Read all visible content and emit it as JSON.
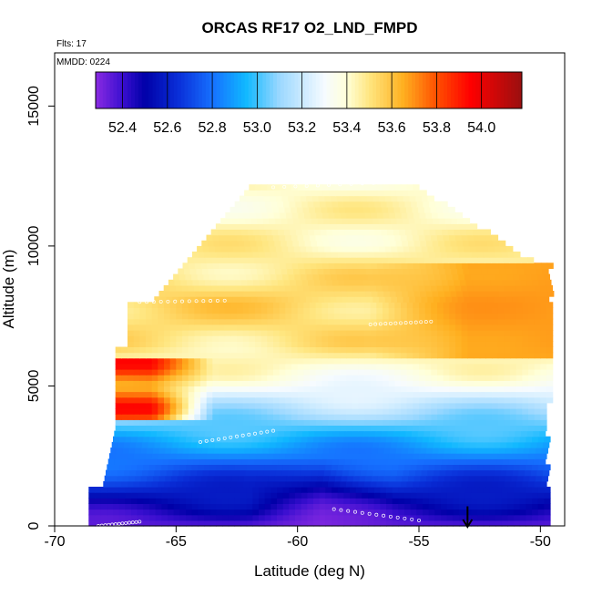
{
  "chart_data": {
    "type": "heatmap",
    "title": "ORCAS RF17 O2_LND_FMPD",
    "annotations": [
      "Flts: 17",
      "MMDD: 0224"
    ],
    "xlabel": "Latitude (deg N)",
    "ylabel": "Altitude (m)",
    "xlim": [
      -70,
      -49
    ],
    "ylim": [
      0,
      16900
    ],
    "x_ticks": [
      -70,
      -65,
      -60,
      -55,
      -50
    ],
    "y_ticks": [
      0,
      5000,
      10000,
      15000
    ],
    "colorbar": {
      "range": [
        52.28,
        54.18
      ],
      "ticks": [
        52.4,
        52.6,
        52.8,
        53.0,
        53.2,
        53.4,
        53.6,
        53.8,
        54.0
      ],
      "tick_labels": [
        "52.4",
        "52.6",
        "52.8",
        "53.0",
        "53.2",
        "53.4",
        "53.6",
        "53.8",
        "54.0"
      ],
      "stops": [
        {
          "v": 52.28,
          "c": "#8a2be2"
        },
        {
          "v": 52.4,
          "c": "#3a0fd0"
        },
        {
          "v": 52.5,
          "c": "#0000a8"
        },
        {
          "v": 52.65,
          "c": "#0a2fd8"
        },
        {
          "v": 52.8,
          "c": "#1670ff"
        },
        {
          "v": 52.95,
          "c": "#10b8ff"
        },
        {
          "v": 53.1,
          "c": "#9cd8ff"
        },
        {
          "v": 53.3,
          "c": "#f6fbff"
        },
        {
          "v": 53.4,
          "c": "#ffffd8"
        },
        {
          "v": 53.5,
          "c": "#ffe680"
        },
        {
          "v": 53.65,
          "c": "#ffb020"
        },
        {
          "v": 53.8,
          "c": "#ff5000"
        },
        {
          "v": 53.95,
          "c": "#ff0000"
        },
        {
          "v": 54.18,
          "c": "#9a1010"
        }
      ]
    },
    "field_structure": {
      "bands": [
        {
          "alt": 0,
          "v": 52.35
        },
        {
          "alt": 1000,
          "v": 52.55
        },
        {
          "alt": 2200,
          "v": 52.78
        },
        {
          "alt": 3200,
          "v": 52.95
        },
        {
          "alt": 4200,
          "v": 53.15
        },
        {
          "alt": 5200,
          "v": 53.35
        },
        {
          "alt": 6500,
          "v": 53.5
        },
        {
          "alt": 8000,
          "v": 53.55
        },
        {
          "alt": 10000,
          "v": 53.45
        },
        {
          "alt": 12500,
          "v": 53.4
        }
      ],
      "south_anomaly": {
        "lat_max": -63.5,
        "alt_min": 3800,
        "alt_max": 6000,
        "v": 53.95
      },
      "north_anomaly": {
        "lat_min": -57,
        "alt_min": 6000,
        "alt_max": 9500,
        "v": 53.72
      },
      "low_core": {
        "lat_center": -59,
        "alt_max": 2500,
        "v": 52.3
      }
    },
    "arrow_marker": {
      "lat": -53,
      "direction": "down"
    }
  }
}
